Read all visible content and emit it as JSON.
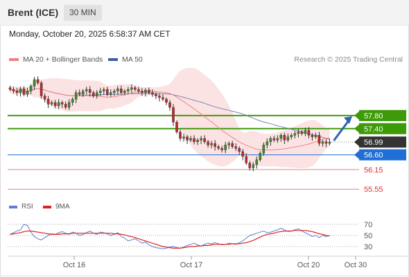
{
  "header": {
    "instrument": "Brent (ICE)",
    "timeframe": "30 MIN"
  },
  "datetime": "Monday, October 20, 2025 6:58:37 AM CET",
  "legend": [
    {
      "label": "MA 20 + Bollinger Bands",
      "color": "#f08080"
    },
    {
      "label": "MA 50",
      "color": "#3a5fa0"
    }
  ],
  "copyright": "Research © 2025 Trading Central",
  "rsi_legend": [
    {
      "label": "RSI",
      "color": "#5b7fd1"
    },
    {
      "label": "9MA",
      "color": "#e02020"
    }
  ],
  "chart_data": {
    "type": "candlestick",
    "x_ticks": [
      "Oct 16",
      "Oct 17",
      "Oct 20",
      "Oct 30"
    ],
    "price_range": [
      55.3,
      59.3
    ],
    "current_price": 56.99,
    "levels": [
      {
        "value": 57.8,
        "label": "57.80",
        "kind": "resistance",
        "color": "#3f9a0a"
      },
      {
        "value": 57.4,
        "label": "57.40",
        "kind": "resistance",
        "color": "#3f9a0a"
      },
      {
        "value": 56.99,
        "label": "56.99",
        "kind": "current",
        "color": "#333333"
      },
      {
        "value": 56.6,
        "label": "56.60",
        "kind": "pivot",
        "color": "#1f6fd6"
      },
      {
        "value": 56.15,
        "label": "56.15",
        "kind": "support",
        "color": "#e08080"
      },
      {
        "value": 55.55,
        "label": "55.55",
        "kind": "support",
        "color": "#e08080"
      }
    ],
    "close": [
      58.6,
      58.55,
      58.5,
      58.62,
      58.45,
      58.55,
      58.7,
      58.9,
      58.8,
      58.4,
      58.3,
      58.15,
      58.2,
      58.1,
      58.2,
      58.15,
      58.05,
      58.2,
      58.3,
      58.5,
      58.45,
      58.55,
      58.6,
      58.5,
      58.4,
      58.5,
      58.55,
      58.6,
      58.45,
      58.5,
      58.55,
      58.62,
      58.5,
      58.55,
      58.6,
      58.65,
      58.6,
      58.55,
      58.5,
      58.58,
      58.5,
      58.45,
      58.4,
      58.35,
      58.3,
      58.2,
      58.05,
      57.6,
      57.3,
      57.1,
      57.15,
      57.05,
      57.1,
      57.0,
      57.05,
      57.1,
      57.0,
      56.9,
      56.95,
      56.85,
      56.8,
      56.75,
      56.9,
      56.95,
      56.85,
      56.8,
      56.7,
      56.55,
      56.35,
      56.2,
      56.3,
      56.45,
      56.65,
      56.9,
      57.0,
      57.1,
      57.05,
      57.1,
      57.2,
      57.05,
      57.15,
      57.2,
      57.25,
      57.3,
      57.25,
      57.35,
      57.2,
      57.15,
      57.2,
      56.95,
      57.0,
      56.95,
      56.99
    ],
    "rsi": {
      "y_ticks": [
        70,
        50,
        30
      ],
      "range": [
        15,
        85
      ],
      "rsi": [
        52,
        55,
        58,
        60,
        70,
        68,
        56,
        48,
        44,
        42,
        46,
        50,
        53,
        52,
        55,
        57,
        54,
        52,
        56,
        54,
        50,
        52,
        55,
        58,
        54,
        52,
        56,
        55,
        53,
        50,
        52,
        55,
        48,
        45,
        40,
        42,
        44,
        40,
        36,
        38,
        33,
        30,
        28,
        27,
        26,
        27,
        29,
        30,
        28,
        27,
        29,
        32,
        34,
        36,
        33,
        31,
        34,
        36,
        35,
        37,
        35,
        33,
        34,
        36,
        35,
        34,
        37,
        40,
        45,
        50,
        52,
        54,
        56,
        58,
        55,
        56,
        58,
        60,
        63,
        60,
        57,
        58,
        60,
        62,
        58,
        55,
        52,
        48,
        50,
        46,
        50,
        48,
        50
      ],
      "ma9": [
        52,
        53,
        54,
        55,
        57,
        58,
        58,
        57,
        56,
        55,
        54,
        53,
        52,
        52,
        52,
        53,
        53,
        53,
        54,
        54,
        54,
        54,
        54,
        54,
        54,
        54,
        54,
        54,
        54,
        54,
        53,
        53,
        52,
        51,
        49,
        48,
        46,
        44,
        42,
        40,
        38,
        36,
        34,
        32,
        30,
        29,
        28,
        27,
        27,
        27,
        28,
        29,
        30,
        30,
        31,
        31,
        32,
        32,
        33,
        34,
        34,
        34,
        34,
        34,
        35,
        35,
        35,
        36,
        37,
        39,
        41,
        44,
        47,
        50,
        52,
        53,
        54,
        56,
        57,
        58,
        58,
        58,
        59,
        59,
        59,
        59,
        58,
        57,
        55,
        53,
        52,
        50,
        49
      ]
    }
  }
}
